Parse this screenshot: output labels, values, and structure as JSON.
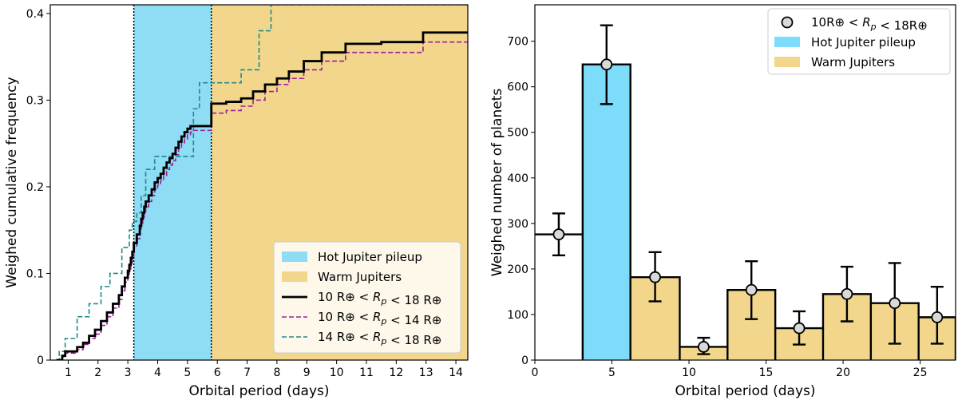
{
  "chart_data": [
    {
      "type": "line",
      "xlabel": "Orbital period (days)",
      "ylabel": "Weighed cumulative frequency",
      "xlim": [
        0.4,
        14.4
      ],
      "ylim": [
        0,
        0.41
      ],
      "xticks": [
        1,
        2,
        3,
        4,
        5,
        6,
        7,
        8,
        9,
        10,
        11,
        12,
        13,
        14
      ],
      "yticks": [
        0,
        0.1,
        0.2,
        0.3,
        0.4
      ],
      "ytick_labels": [
        "0",
        "0.1",
        "0.2",
        "0.3",
        "0.4"
      ],
      "legend_position": "lower-right",
      "regions": [
        {
          "name": "Hot Jupiter pileup",
          "x0": 3.2,
          "x1": 5.8,
          "color": "#8fdcf5"
        },
        {
          "name": "Warm Jupiters",
          "x0": 5.8,
          "x1": 14.4,
          "color": "#f1d68c"
        }
      ],
      "vlines": [
        3.2,
        5.8
      ],
      "series": [
        {
          "name": "10 R⊕ < Rp < 18 R⊕",
          "color": "#000000",
          "style": "solid",
          "x": [
            0.6,
            0.8,
            0.9,
            1.3,
            1.5,
            1.7,
            1.9,
            2.1,
            2.3,
            2.5,
            2.7,
            2.8,
            2.9,
            3.0,
            3.05,
            3.1,
            3.15,
            3.2,
            3.3,
            3.4,
            3.45,
            3.5,
            3.55,
            3.6,
            3.7,
            3.8,
            3.9,
            4.0,
            4.1,
            4.2,
            4.3,
            4.4,
            4.5,
            4.6,
            4.7,
            4.8,
            4.9,
            5.0,
            5.1,
            5.2,
            5.3,
            5.4,
            5.5,
            5.6,
            5.7,
            5.8,
            6.3,
            6.8,
            7.2,
            7.6,
            8.0,
            8.4,
            8.9,
            9.5,
            10.3,
            11.5,
            12.9,
            14.4
          ],
          "y": [
            0.0,
            0.005,
            0.01,
            0.015,
            0.02,
            0.028,
            0.035,
            0.045,
            0.055,
            0.065,
            0.075,
            0.085,
            0.095,
            0.103,
            0.11,
            0.118,
            0.125,
            0.135,
            0.145,
            0.155,
            0.163,
            0.17,
            0.177,
            0.183,
            0.19,
            0.197,
            0.205,
            0.21,
            0.215,
            0.222,
            0.228,
            0.233,
            0.238,
            0.245,
            0.252,
            0.258,
            0.263,
            0.267,
            0.27,
            0.27,
            0.27,
            0.27,
            0.27,
            0.27,
            0.27,
            0.296,
            0.298,
            0.302,
            0.31,
            0.318,
            0.325,
            0.333,
            0.345,
            0.355,
            0.365,
            0.367,
            0.378,
            0.378
          ]
        },
        {
          "name": "10 R⊕ < Rp < 14 R⊕",
          "color": "#9b1f9b",
          "style": "dashed",
          "x": [
            0.6,
            0.8,
            0.9,
            1.3,
            1.5,
            1.7,
            1.9,
            2.1,
            2.3,
            2.5,
            2.7,
            2.8,
            2.9,
            3.0,
            3.05,
            3.1,
            3.15,
            3.2,
            3.3,
            3.4,
            3.45,
            3.5,
            3.55,
            3.6,
            3.7,
            3.8,
            3.9,
            4.0,
            4.1,
            4.2,
            4.3,
            4.4,
            4.5,
            4.6,
            4.7,
            4.8,
            4.9,
            5.0,
            5.1,
            5.2,
            5.3,
            5.4,
            5.5,
            5.6,
            5.7,
            5.8,
            6.3,
            6.8,
            7.2,
            7.6,
            8.0,
            8.4,
            8.9,
            9.5,
            10.3,
            11.5,
            12.9,
            14.4
          ],
          "y": [
            0.0,
            0.004,
            0.008,
            0.012,
            0.018,
            0.025,
            0.03,
            0.04,
            0.05,
            0.06,
            0.07,
            0.08,
            0.09,
            0.097,
            0.105,
            0.112,
            0.12,
            0.13,
            0.14,
            0.15,
            0.157,
            0.163,
            0.17,
            0.177,
            0.183,
            0.19,
            0.197,
            0.202,
            0.207,
            0.213,
            0.22,
            0.225,
            0.23,
            0.237,
            0.244,
            0.25,
            0.255,
            0.26,
            0.263,
            0.265,
            0.265,
            0.265,
            0.265,
            0.265,
            0.265,
            0.285,
            0.288,
            0.293,
            0.3,
            0.31,
            0.318,
            0.325,
            0.335,
            0.345,
            0.355,
            0.355,
            0.367,
            0.367
          ]
        },
        {
          "name": "14 R⊕ < Rp < 18 R⊕",
          "color": "#1f8a8a",
          "style": "dashed",
          "x": [
            0.6,
            0.7,
            0.9,
            1.3,
            1.7,
            2.1,
            2.4,
            2.8,
            3.05,
            3.15,
            3.3,
            3.45,
            3.6,
            3.9,
            4.3,
            5.2,
            5.4,
            5.7,
            5.8,
            6.8,
            7.4,
            7.8,
            14.4
          ],
          "y": [
            0.0,
            0.01,
            0.025,
            0.05,
            0.065,
            0.085,
            0.1,
            0.13,
            0.15,
            0.16,
            0.17,
            0.19,
            0.22,
            0.235,
            0.235,
            0.29,
            0.32,
            0.32,
            0.32,
            0.335,
            0.38,
            0.41,
            0.41
          ]
        }
      ]
    },
    {
      "type": "bar",
      "xlabel": "Orbital period (days)",
      "ylabel": "Weighed number of planets",
      "xlim": [
        0,
        27.3
      ],
      "ylim": [
        0,
        780
      ],
      "xticks": [
        0,
        5,
        10,
        15,
        20,
        25
      ],
      "yticks": [
        0,
        100,
        200,
        300,
        400,
        500,
        600,
        700
      ],
      "legend_position": "top-right",
      "bin_edges": [
        0,
        3.1,
        6.2,
        9.4,
        12.5,
        15.6,
        18.7,
        21.8,
        24.9,
        27.3
      ],
      "values": [
        276,
        649,
        182,
        29,
        154,
        70,
        145,
        125,
        94
      ],
      "bin_centers": [
        1.55,
        4.65,
        7.8,
        10.95,
        14.05,
        17.15,
        20.25,
        23.35,
        26.1
      ],
      "err_low": [
        46,
        87,
        53,
        16,
        64,
        36,
        60,
        89,
        58
      ],
      "err_high": [
        46,
        86,
        55,
        20,
        63,
        37,
        60,
        88,
        67
      ],
      "bar_colors": [
        "none",
        "#7ddcf9",
        "#f1d68c",
        "#f1d68c",
        "#f1d68c",
        "#f1d68c",
        "#f1d68c",
        "#f1d68c",
        "#f1d68c"
      ],
      "legend": [
        {
          "label": "10R⊕ < Rp < 18R⊕",
          "kind": "marker"
        },
        {
          "label": "Hot Jupiter pileup",
          "kind": "patch",
          "color": "#7ddcf9"
        },
        {
          "label": "Warm Jupiters",
          "kind": "patch",
          "color": "#f1d68c"
        }
      ]
    }
  ]
}
